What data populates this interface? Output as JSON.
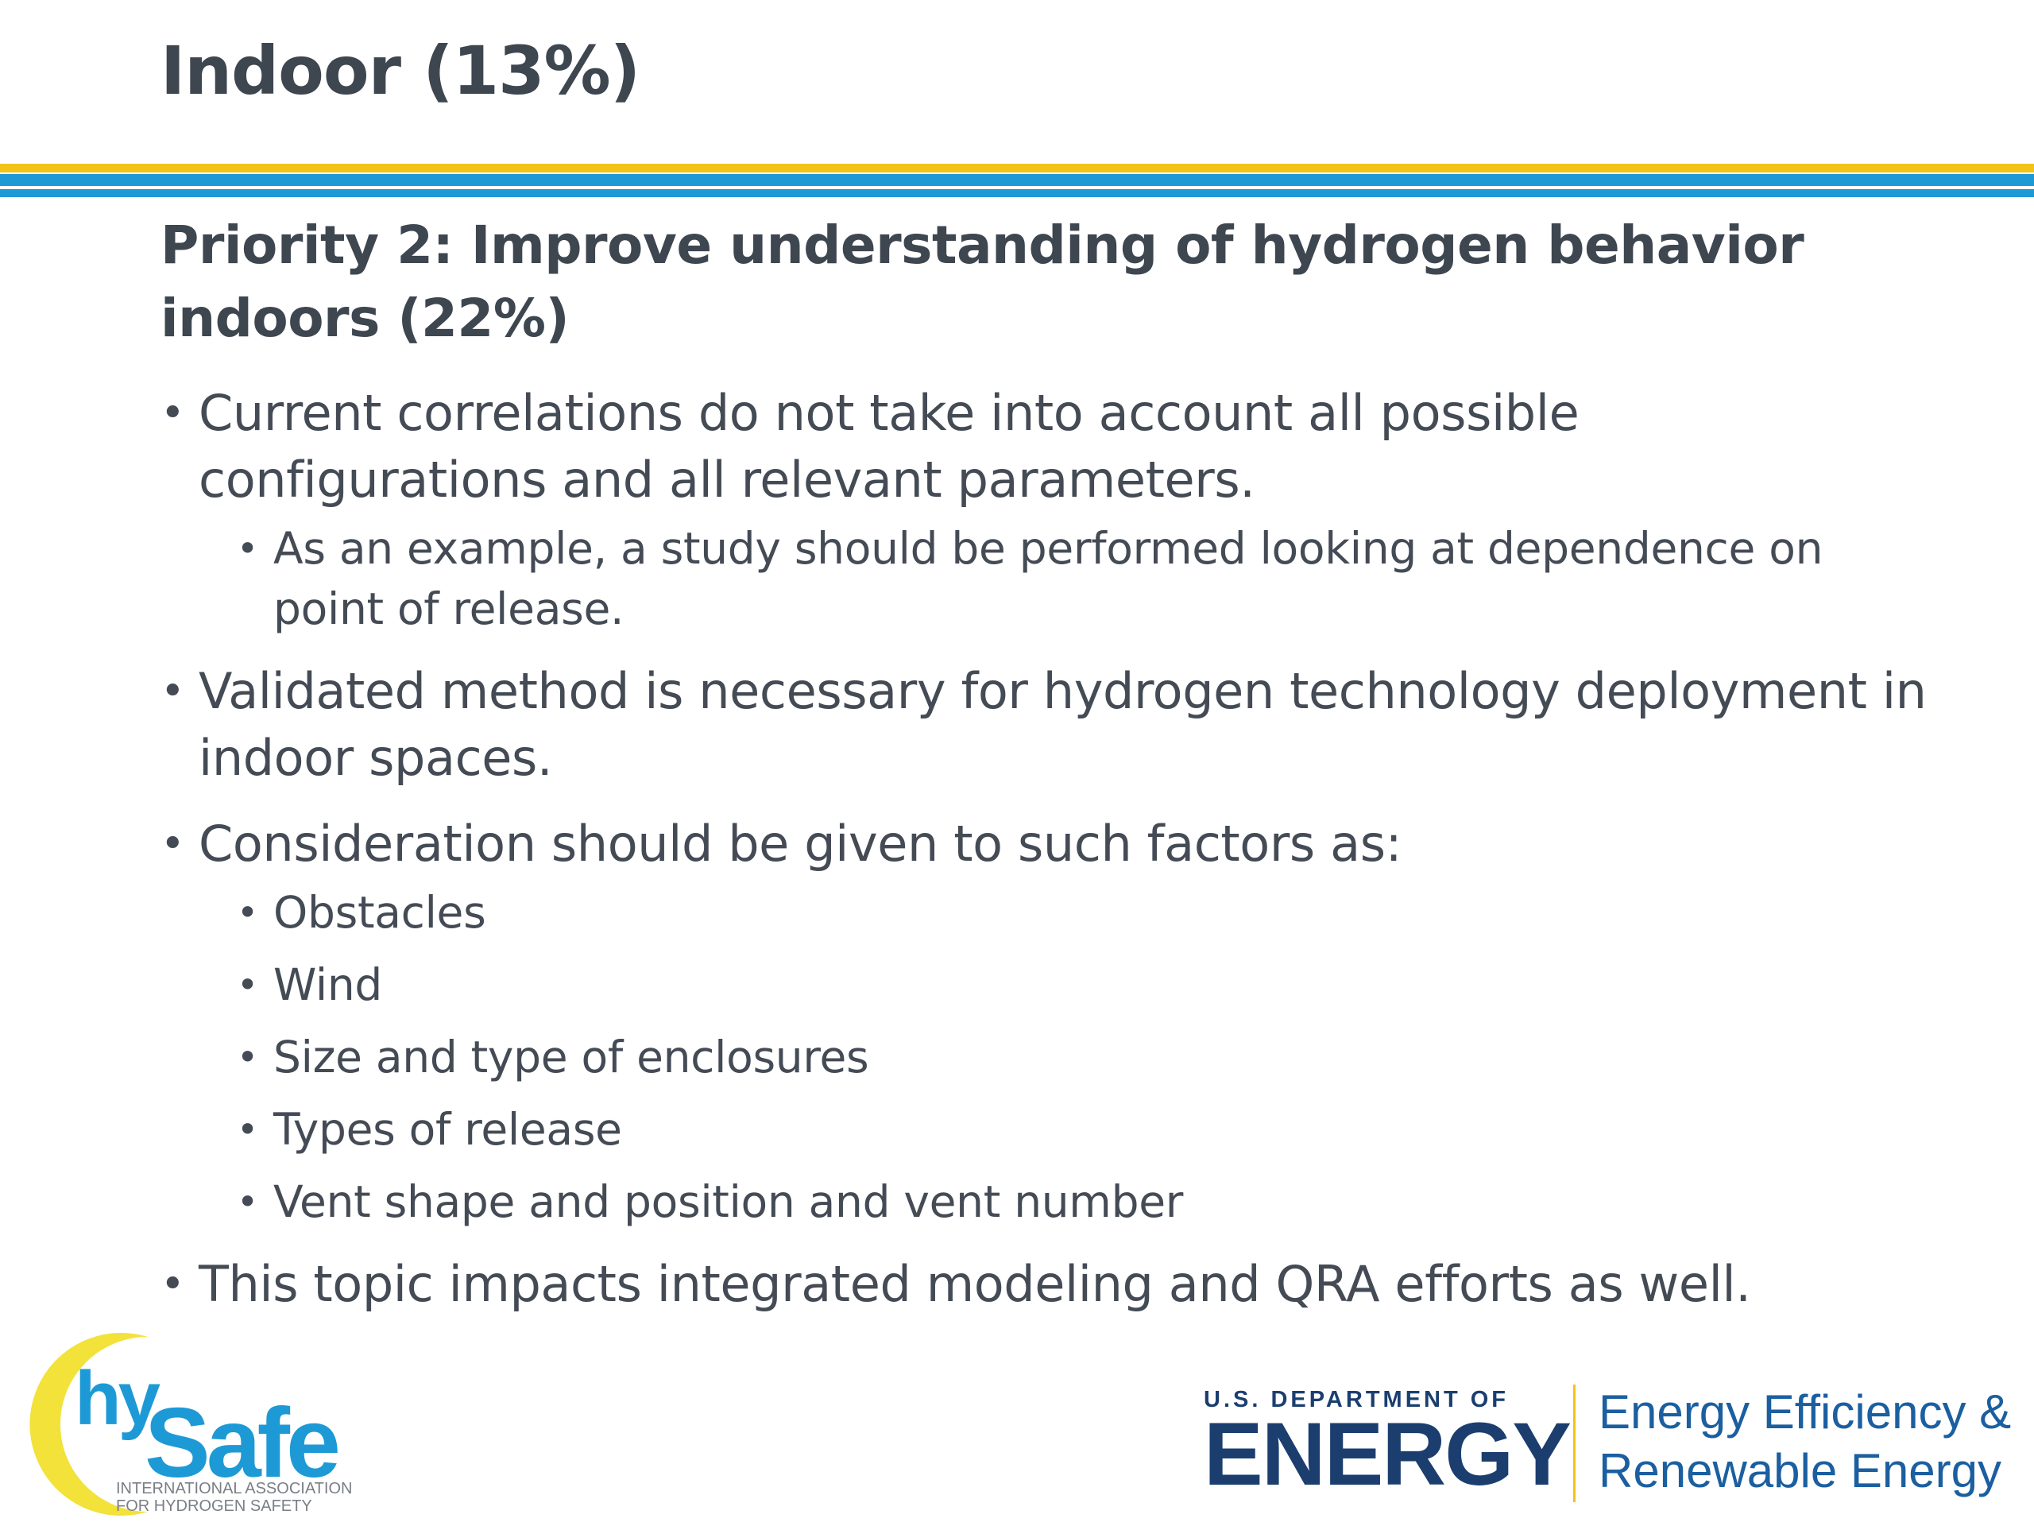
{
  "slide": {
    "title": "Indoor (13%)",
    "subtitle": "Priority 2: Improve understanding of hydrogen behavior indoors (22%)",
    "bullet_char": "•",
    "bullets": [
      {
        "text": "Current correlations do not take into account all possible configurations and all relevant parameters.",
        "sub": [
          "As an example, a study should be performed looking at dependence on point of release."
        ]
      },
      {
        "text": "Validated method is necessary for hydrogen technology deployment in indoor spaces.",
        "sub": []
      },
      {
        "text": "Consideration should be given to such factors as:",
        "sub": [
          "Obstacles",
          "Wind",
          "Size and type of enclosures",
          "Types of release",
          "Vent shape and position and vent number"
        ]
      },
      {
        "text": "This topic impacts integrated modeling and QRA efforts as well.",
        "sub": []
      }
    ]
  },
  "logos": {
    "hysafe": {
      "hy": "hy",
      "safe": "Safe",
      "line1": "INTERNATIONAL ASSOCIATION",
      "line2": "FOR HYDROGEN SAFETY"
    },
    "doe": {
      "small": "U.S. DEPARTMENT OF",
      "big": "ENERGY"
    },
    "eere": {
      "line1": "Energy Efficiency &",
      "line2": "Renewable Energy"
    }
  },
  "colors": {
    "text": "#444b55",
    "accent_yellow": "#f2c318",
    "accent_blue": "#1d9ad6",
    "doe_navy": "#1b3e6f",
    "eere_blue": "#1b5fa0"
  }
}
